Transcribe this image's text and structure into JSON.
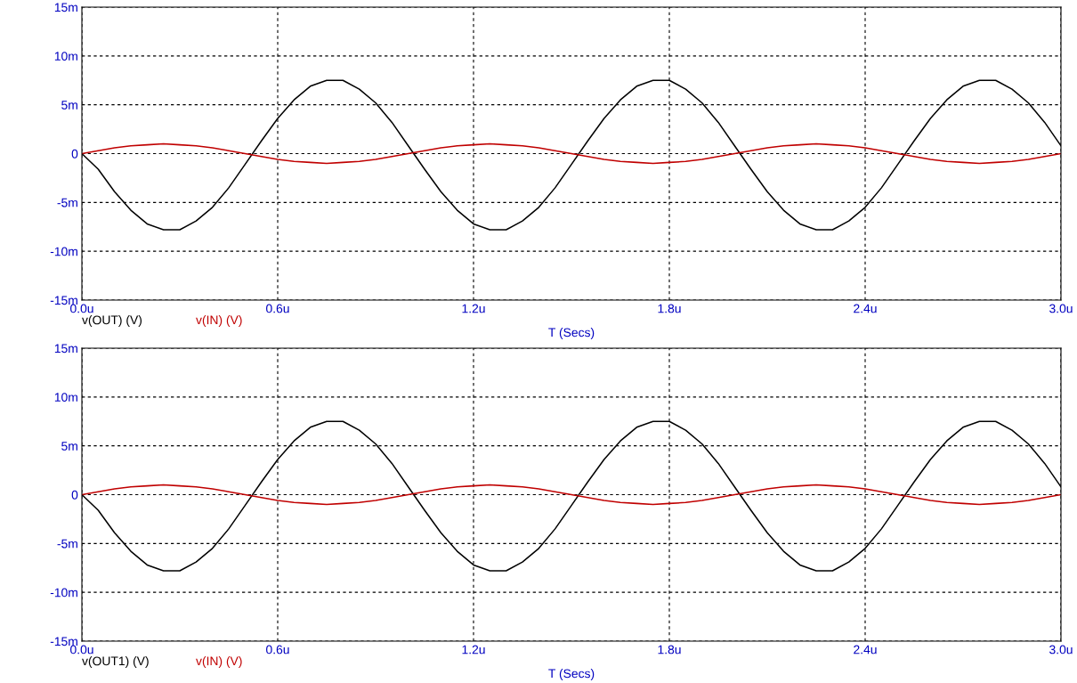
{
  "chart_data": [
    {
      "type": "line",
      "xlabel": "T (Secs)",
      "grid": true,
      "legend": "bottom left",
      "xlim": [
        0,
        3
      ],
      "ylim": [
        -15,
        15
      ],
      "xticks": [
        {
          "value": 0,
          "label": "0.0u"
        },
        {
          "value": 0.6,
          "label": "0.6u"
        },
        {
          "value": 1.2,
          "label": "1.2u"
        },
        {
          "value": 1.8,
          "label": "1.8u"
        },
        {
          "value": 2.4,
          "label": "2.4u"
        },
        {
          "value": 3,
          "label": "3.0u"
        }
      ],
      "yticks": [
        {
          "value": -15,
          "label": "-15m"
        },
        {
          "value": -10,
          "label": "-10m"
        },
        {
          "value": -5,
          "label": "-5m"
        },
        0,
        {
          "value": 5,
          "label": "5m"
        },
        {
          "value": 10,
          "label": "10m"
        },
        {
          "value": 15,
          "label": "15m"
        }
      ],
      "x": [
        0,
        0.05,
        0.1,
        0.15,
        0.2,
        0.25,
        0.3,
        0.35,
        0.4,
        0.45,
        0.5,
        0.55,
        0.6,
        0.65,
        0.7,
        0.75,
        0.8,
        0.85,
        0.9,
        0.95,
        1.0,
        1.05,
        1.1,
        1.15,
        1.2,
        1.25,
        1.3,
        1.35,
        1.4,
        1.45,
        1.5,
        1.55,
        1.6,
        1.65,
        1.7,
        1.75,
        1.8,
        1.85,
        1.9,
        1.95,
        2.0,
        2.05,
        2.1,
        2.15,
        2.2,
        2.25,
        2.3,
        2.35,
        2.4,
        2.45,
        2.5,
        2.55,
        2.6,
        2.65,
        2.7,
        2.75,
        2.8,
        2.85,
        2.9,
        2.95,
        3.0
      ],
      "series": [
        {
          "name": "v(OUT) (V)",
          "color": "#000000",
          "values": [
            0,
            -1.6,
            -3.9,
            -5.8,
            -7.2,
            -7.8,
            -7.8,
            -6.9,
            -5.5,
            -3.5,
            -1.1,
            1.3,
            3.6,
            5.5,
            6.9,
            7.5,
            7.5,
            6.6,
            5.2,
            3.2,
            0.8,
            -1.6,
            -3.9,
            -5.8,
            -7.2,
            -7.8,
            -7.8,
            -6.9,
            -5.5,
            -3.5,
            -1.1,
            1.3,
            3.6,
            5.5,
            6.9,
            7.5,
            7.5,
            6.6,
            5.2,
            3.2,
            0.8,
            -1.6,
            -3.9,
            -5.8,
            -7.2,
            -7.8,
            -7.8,
            -6.9,
            -5.5,
            -3.5,
            -1.1,
            1.3,
            3.6,
            5.5,
            6.9,
            7.5,
            7.5,
            6.6,
            5.2,
            3.2,
            0.8
          ]
        },
        {
          "name": "v(IN) (V)",
          "color": "#c00000",
          "values": [
            0,
            0.3,
            0.6,
            0.8,
            0.9,
            1,
            0.9,
            0.8,
            0.6,
            0.3,
            0,
            -0.3,
            -0.6,
            -0.8,
            -0.9,
            -1,
            -0.9,
            -0.8,
            -0.6,
            -0.3,
            0,
            0.3,
            0.6,
            0.8,
            0.9,
            1,
            0.9,
            0.8,
            0.6,
            0.3,
            0,
            -0.3,
            -0.6,
            -0.8,
            -0.9,
            -1,
            -0.9,
            -0.8,
            -0.6,
            -0.3,
            0,
            0.3,
            0.6,
            0.8,
            0.9,
            1,
            0.9,
            0.8,
            0.6,
            0.3,
            0,
            -0.3,
            -0.6,
            -0.8,
            -0.9,
            -1,
            -0.9,
            -0.8,
            -0.6,
            -0.3,
            0
          ]
        }
      ]
    },
    {
      "type": "line",
      "xlabel": "T (Secs)",
      "grid": true,
      "legend": "bottom left",
      "xlim": [
        0,
        3
      ],
      "ylim": [
        -15,
        15
      ],
      "xticks": [
        {
          "value": 0,
          "label": "0.0u"
        },
        {
          "value": 0.6,
          "label": "0.6u"
        },
        {
          "value": 1.2,
          "label": "1.2u"
        },
        {
          "value": 1.8,
          "label": "1.8u"
        },
        {
          "value": 2.4,
          "label": "2.4u"
        },
        {
          "value": 3,
          "label": "3.0u"
        }
      ],
      "yticks": [
        {
          "value": -15,
          "label": "-15m"
        },
        {
          "value": -10,
          "label": "-10m"
        },
        {
          "value": -5,
          "label": "-5m"
        },
        0,
        {
          "value": 5,
          "label": "5m"
        },
        {
          "value": 10,
          "label": "10m"
        },
        {
          "value": 15,
          "label": "15m"
        }
      ],
      "x": [
        0,
        0.05,
        0.1,
        0.15,
        0.2,
        0.25,
        0.3,
        0.35,
        0.4,
        0.45,
        0.5,
        0.55,
        0.6,
        0.65,
        0.7,
        0.75,
        0.8,
        0.85,
        0.9,
        0.95,
        1.0,
        1.05,
        1.1,
        1.15,
        1.2,
        1.25,
        1.3,
        1.35,
        1.4,
        1.45,
        1.5,
        1.55,
        1.6,
        1.65,
        1.7,
        1.75,
        1.8,
        1.85,
        1.9,
        1.95,
        2.0,
        2.05,
        2.1,
        2.15,
        2.2,
        2.25,
        2.3,
        2.35,
        2.4,
        2.45,
        2.5,
        2.55,
        2.6,
        2.65,
        2.7,
        2.75,
        2.8,
        2.85,
        2.9,
        2.95,
        3.0
      ],
      "series": [
        {
          "name": "v(OUT1) (V)",
          "color": "#000000",
          "values": [
            0,
            -1.6,
            -3.9,
            -5.8,
            -7.2,
            -7.8,
            -7.8,
            -6.9,
            -5.5,
            -3.5,
            -1.1,
            1.3,
            3.6,
            5.5,
            6.9,
            7.5,
            7.5,
            6.6,
            5.2,
            3.2,
            0.8,
            -1.6,
            -3.9,
            -5.8,
            -7.2,
            -7.8,
            -7.8,
            -6.9,
            -5.5,
            -3.5,
            -1.1,
            1.3,
            3.6,
            5.5,
            6.9,
            7.5,
            7.5,
            6.6,
            5.2,
            3.2,
            0.8,
            -1.6,
            -3.9,
            -5.8,
            -7.2,
            -7.8,
            -7.8,
            -6.9,
            -5.5,
            -3.5,
            -1.1,
            1.3,
            3.6,
            5.5,
            6.9,
            7.5,
            7.5,
            6.6,
            5.2,
            3.2,
            0.8
          ]
        },
        {
          "name": "v(IN) (V)",
          "color": "#c00000",
          "values": [
            0,
            0.3,
            0.6,
            0.8,
            0.9,
            1,
            0.9,
            0.8,
            0.6,
            0.3,
            0,
            -0.3,
            -0.6,
            -0.8,
            -0.9,
            -1,
            -0.9,
            -0.8,
            -0.6,
            -0.3,
            0,
            0.3,
            0.6,
            0.8,
            0.9,
            1,
            0.9,
            0.8,
            0.6,
            0.3,
            0,
            -0.3,
            -0.6,
            -0.8,
            -0.9,
            -1,
            -0.9,
            -0.8,
            -0.6,
            -0.3,
            0,
            0.3,
            0.6,
            0.8,
            0.9,
            1,
            0.9,
            0.8,
            0.6,
            0.3,
            0,
            -0.3,
            -0.6,
            -0.8,
            -0.9,
            -1,
            -0.9,
            -0.8,
            -0.6,
            -0.3,
            0
          ]
        }
      ]
    }
  ]
}
